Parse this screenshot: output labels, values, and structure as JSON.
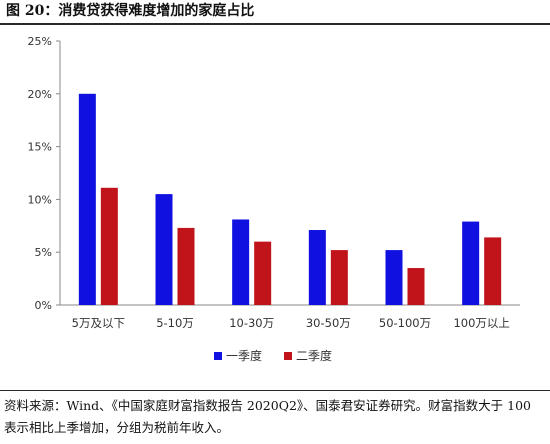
{
  "title": "图 20：消费贷获得难度增加的家庭占比",
  "source_note": "资料来源：Wind、《中国家庭财富指数报告 2020Q2》、国泰君安证券研究。财富指数大于 100 表示相比上季增加，分组为税前年收入。",
  "chart_data": {
    "type": "bar",
    "title": "",
    "xlabel": "",
    "ylabel": "",
    "categories": [
      "5万及以下",
      "5-10万",
      "10-30万",
      "30-50万",
      "50-100万",
      "100万以上"
    ],
    "series": [
      {
        "name": "一季度",
        "color": "#1010e0",
        "values": [
          20.0,
          10.5,
          8.1,
          7.1,
          5.2,
          7.9
        ]
      },
      {
        "name": "二季度",
        "color": "#c0141a",
        "values": [
          11.1,
          7.3,
          6.0,
          5.2,
          3.5,
          6.4
        ]
      }
    ],
    "ylim": [
      0,
      25
    ],
    "yticks": [
      "0%",
      "5%",
      "10%",
      "15%",
      "20%",
      "25%"
    ],
    "grid": false,
    "legend_position": "bottom-center"
  }
}
